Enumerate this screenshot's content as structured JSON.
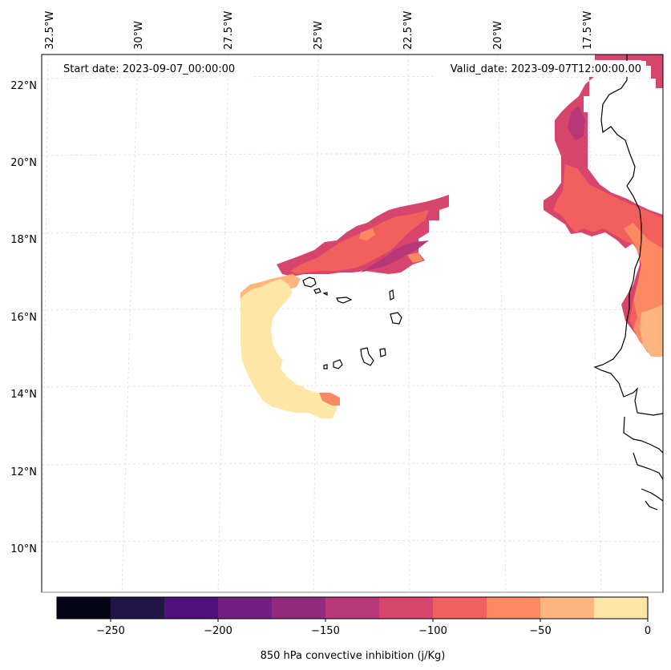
{
  "header": {
    "start_date": "Start date: 2023-09-07_00:00:00",
    "valid_date": "Valid_date: 2023-09-07T12:00:00.00"
  },
  "longitude_labels": [
    "32.5°W",
    "30°W",
    "27.5°W",
    "25°W",
    "22.5°W",
    "20°W",
    "17.5°W"
  ],
  "latitude_labels": [
    "22°N",
    "20°N",
    "18°N",
    "16°N",
    "14°N",
    "12°N",
    "10°N"
  ],
  "colorbar": {
    "label": "850 hPa convective inhibition (j/Kg)",
    "ticks": [
      "−250",
      "−200",
      "−150",
      "−100",
      "−50",
      "0"
    ],
    "levels": [
      -275,
      -250,
      -225,
      -200,
      -175,
      -150,
      -125,
      -100,
      -75,
      -50,
      -25,
      0
    ],
    "colormap": "magma",
    "colors": [
      "#050417",
      "#211545",
      "#4e117b",
      "#721f81",
      "#922a7f",
      "#b73779",
      "#d8456c",
      "#f1605d",
      "#fc8961",
      "#feb67e",
      "#fde6a6"
    ]
  }
}
